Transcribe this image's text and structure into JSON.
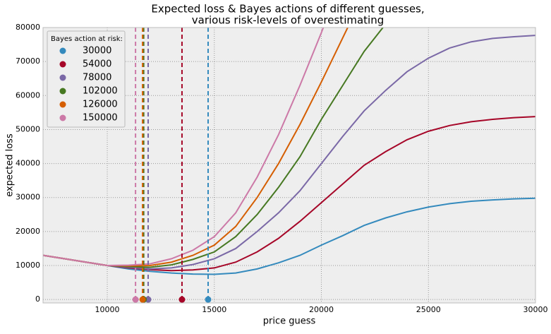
{
  "chart_data": {
    "type": "line",
    "title": [
      "Expected loss & Bayes actions of different guesses,",
      "various risk-levels of overestimating"
    ],
    "xlabel": "price guess",
    "ylabel": "expected loss",
    "legend_title": "Bayes action at risk:",
    "legend": "upper left",
    "grid": true,
    "xlim": [
      7000,
      30000
    ],
    "ylim": [
      -1000,
      80000
    ],
    "xticks": [
      10000,
      15000,
      20000,
      25000,
      30000
    ],
    "yticks": [
      0,
      10000,
      20000,
      30000,
      40000,
      50000,
      60000,
      70000,
      80000
    ],
    "x": [
      7000,
      8000,
      9000,
      10000,
      11000,
      12000,
      13000,
      14000,
      15000,
      16000,
      17000,
      18000,
      19000,
      20000,
      21000,
      22000,
      23000,
      24000,
      25000,
      26000,
      27000,
      28000,
      29000,
      30000
    ],
    "series": [
      {
        "name": "30000",
        "color": "#348abd",
        "bayes_action": 14710,
        "values": [
          13000,
          12000,
          11000,
          10000,
          9000,
          8300,
          7800,
          7500,
          7400,
          7800,
          9000,
          10800,
          13000,
          16000,
          18800,
          21800,
          24000,
          25800,
          27200,
          28200,
          28900,
          29300,
          29600,
          29800
        ]
      },
      {
        "name": "54000",
        "color": "#a60628",
        "bayes_action": 13490,
        "values": [
          13000,
          12000,
          11000,
          10000,
          9300,
          8800,
          8500,
          8700,
          9300,
          11000,
          14000,
          18000,
          23000,
          28500,
          34000,
          39500,
          43500,
          47000,
          49500,
          51200,
          52300,
          53000,
          53500,
          53800
        ]
      },
      {
        "name": "78000",
        "color": "#7a68a6",
        "bayes_action": 11910,
        "values": [
          13000,
          12000,
          11000,
          10000,
          9500,
          9000,
          9300,
          10300,
          12000,
          15000,
          20000,
          25500,
          32000,
          40000,
          48000,
          55500,
          61500,
          67000,
          71000,
          74000,
          75800,
          76800,
          77300,
          77700
        ]
      },
      {
        "name": "102000",
        "color": "#467821",
        "bayes_action": 11700,
        "values": [
          13000,
          12000,
          11000,
          10000,
          9700,
          9500,
          10200,
          11800,
          14000,
          18500,
          25000,
          33000,
          42000,
          53000,
          63000,
          73000,
          81000,
          null,
          null,
          null,
          null,
          null,
          null,
          null
        ]
      },
      {
        "name": "126000",
        "color": "#d55e00",
        "bayes_action": 11650,
        "values": [
          13000,
          12000,
          11000,
          10000,
          9900,
          10000,
          11000,
          13000,
          16000,
          21500,
          30000,
          40000,
          51500,
          64000,
          77000,
          90000,
          null,
          null,
          null,
          null,
          null,
          null,
          null,
          null
        ]
      },
      {
        "name": "150000",
        "color": "#cc79a7",
        "bayes_action": 11320,
        "values": [
          13000,
          12000,
          11000,
          10000,
          10100,
          10500,
          12000,
          14500,
          18500,
          25500,
          36000,
          48500,
          63000,
          78500,
          95000,
          null,
          null,
          null,
          null,
          null,
          null,
          null,
          null,
          null
        ]
      }
    ]
  }
}
